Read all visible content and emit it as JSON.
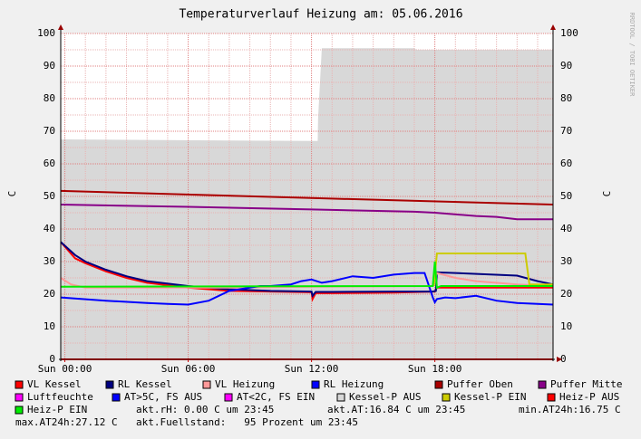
{
  "chart_data": {
    "type": "line",
    "title": "Temperaturverlauf Heizung am: 05.06.2016",
    "ylabel": "C",
    "watermark": "RRDTOOL / TOBI OETIKER",
    "xlim": [
      -0.2,
      23.75
    ],
    "xticks": [
      {
        "value": 0,
        "label": "Sun 00:00"
      },
      {
        "value": 6,
        "label": "Sun 06:00"
      },
      {
        "value": 12,
        "label": "Sun 12:00"
      },
      {
        "value": 18,
        "label": "Sun 18:00"
      }
    ],
    "xminor": [
      1,
      2,
      3,
      4,
      5,
      7,
      8,
      9,
      10,
      11,
      13,
      14,
      15,
      16,
      17,
      19,
      20,
      21,
      22,
      23
    ],
    "ylim": [
      0,
      100
    ],
    "yticks": [
      0,
      10,
      20,
      30,
      40,
      50,
      60,
      70,
      80,
      90,
      100
    ],
    "yminor": [
      5,
      15,
      25,
      35,
      45,
      55,
      65,
      75,
      85,
      95
    ],
    "grid": true,
    "series": [
      {
        "name": "VL Kessel",
        "color": "#ff0000",
        "x": [
          -0.2,
          0.5,
          1,
          2,
          3,
          4,
          6,
          8,
          10,
          12,
          12.05,
          12.2,
          13,
          16,
          18,
          18.1,
          19,
          22,
          23.75
        ],
        "values": [
          36,
          31,
          29.5,
          27,
          25,
          23.5,
          22,
          21,
          20.8,
          20.6,
          18.5,
          20.3,
          20.3,
          20.5,
          20.8,
          22,
          22,
          22,
          22
        ]
      },
      {
        "name": "RL Kessel",
        "color": "#000080",
        "x": [
          -0.2,
          0.5,
          1,
          2,
          3,
          4,
          6,
          8,
          10,
          12,
          12.05,
          12.2,
          13,
          16,
          17.9,
          18.05,
          18.1,
          19,
          22,
          23,
          23.75
        ],
        "values": [
          36,
          32,
          30,
          27.5,
          25.5,
          24,
          22.5,
          21.5,
          21,
          20.8,
          19.5,
          20.7,
          20.7,
          20.8,
          20.8,
          21,
          26.7,
          26.5,
          25.7,
          24,
          23
        ]
      },
      {
        "name": "VL Heizung",
        "color": "#ff9999",
        "x": [
          -0.2,
          0.3,
          1,
          4,
          8,
          12,
          17.9,
          18.1,
          19,
          20,
          22,
          23.75
        ],
        "values": [
          25,
          23,
          22,
          22,
          22,
          22.3,
          22.5,
          26.5,
          25,
          24,
          23,
          22.5
        ]
      },
      {
        "name": "RL Heizung",
        "color": "#0000ff",
        "x": [
          -0.2,
          2,
          4,
          5,
          6,
          7,
          8,
          9,
          9.5,
          10,
          11,
          11.5,
          12,
          12.5,
          13,
          14,
          15,
          16,
          17,
          17.5,
          17.9,
          18,
          18.1,
          18.5,
          19,
          20,
          21,
          22,
          23.75
        ],
        "values": [
          19,
          18,
          17.3,
          17,
          16.8,
          18,
          21,
          22,
          22.5,
          22.5,
          23,
          24,
          24.5,
          23.5,
          24,
          25.5,
          25,
          26,
          26.5,
          26.5,
          19,
          17.5,
          18.5,
          19,
          18.8,
          19.5,
          18,
          17.3,
          16.8
        ]
      },
      {
        "name": "Puffer Oben",
        "color": "#aa0000",
        "x": [
          -0.2,
          12,
          23.75
        ],
        "values": [
          51.7,
          49.5,
          47.5
        ]
      },
      {
        "name": "Puffer Mitte",
        "color": "#880088",
        "x": [
          -0.2,
          6,
          12,
          17,
          18,
          20,
          21,
          22,
          23.75
        ],
        "values": [
          47.5,
          46.8,
          46,
          45.3,
          45,
          44,
          43.7,
          43,
          43
        ]
      },
      {
        "name": "Luftfeuchte",
        "color": "#ff00ff",
        "x": [
          -0.2,
          23.75
        ],
        "values": [
          0,
          0
        ]
      },
      {
        "name": "AT>5C, FS AUS",
        "color": "#0000ff",
        "x": [
          -0.2,
          23.75
        ],
        "values": [
          0,
          0
        ]
      },
      {
        "name": "AT<2C, FS EIN",
        "color": "#ff00ff",
        "x": [
          -0.2,
          23.75
        ],
        "values": [
          0,
          0
        ]
      },
      {
        "name": "Kessel-P AUS",
        "color": "#d8d8d8",
        "kind": "area",
        "x": [
          -0.2,
          12.3,
          12.32,
          12.5,
          17,
          17.1,
          23.75
        ],
        "values": [
          67.5,
          67,
          74,
          95.5,
          95.5,
          95,
          95
        ]
      },
      {
        "name": "Kessel-P EIN",
        "color": "#cccc00",
        "x": [
          17.95,
          18.1,
          22.4,
          22.6,
          23.75
        ],
        "values": [
          22.5,
          32.5,
          32.5,
          23,
          23
        ]
      },
      {
        "name": "Heiz-P AUS",
        "color": "#ff0000",
        "x": [
          -0.2,
          23.75
        ],
        "values": [
          0,
          0
        ]
      },
      {
        "name": "Heiz-P EIN",
        "color": "#00ee00",
        "x": [
          -0.2,
          17.9,
          18.0,
          18.1,
          18.3,
          23.75
        ],
        "values": [
          22.3,
          22.5,
          30,
          22,
          22.5,
          22.5
        ]
      }
    ],
    "annotations": [
      "akt.rH: 0.00 C um 23:45",
      "akt.AT:16.84 C um 23:45",
      "min.AT24h:16.75 C",
      "max.AT24h:27.12 C",
      "akt.Fuellstand:   95 Prozent um 23:45"
    ]
  }
}
